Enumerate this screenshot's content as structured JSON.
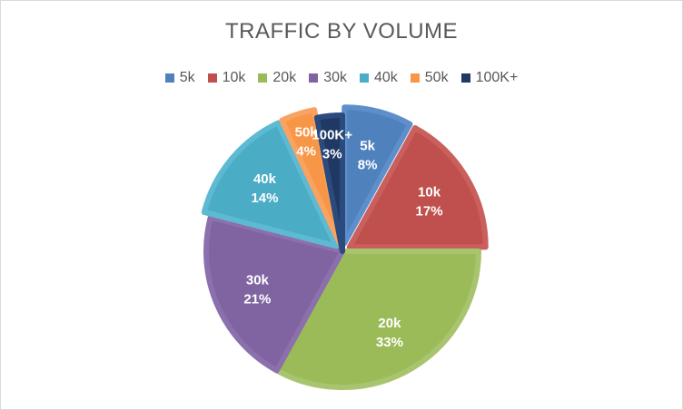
{
  "chart_data": {
    "type": "pie",
    "title": "TRAFFIC BY VOLUME",
    "legend_position": "top",
    "categories": [
      "5k",
      "10k",
      "20k",
      "30k",
      "40k",
      "50k",
      "100K+"
    ],
    "values": [
      8,
      17,
      33,
      21,
      14,
      4,
      3
    ],
    "data_labels": [
      "8%",
      "17%",
      "33%",
      "21%",
      "14%",
      "4%",
      "3%"
    ],
    "colors": [
      "#4F81BD",
      "#C0504D",
      "#9BBB59",
      "#8064A2",
      "#4BACC6",
      "#F79646",
      "#1F3864"
    ],
    "border_colors": [
      "#5E8FCB",
      "#CA605D",
      "#A9C46E",
      "#8B70AD",
      "#5DBAD2",
      "#F9A363",
      "#2B4A7E"
    ],
    "exploded": [
      "5k",
      "10k",
      "40k",
      "50k"
    ]
  }
}
